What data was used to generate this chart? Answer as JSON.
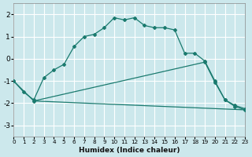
{
  "xlabel": "Humidex (Indice chaleur)",
  "bg_color": "#cce8ec",
  "grid_color": "#b8d8dc",
  "line_color": "#1a7a6e",
  "xlim": [
    0,
    23
  ],
  "ylim": [
    -3.5,
    2.5
  ],
  "yticks": [
    -3,
    -2,
    -1,
    0,
    1,
    2
  ],
  "xticks": [
    0,
    1,
    2,
    3,
    4,
    5,
    6,
    7,
    8,
    9,
    10,
    11,
    12,
    13,
    14,
    15,
    16,
    17,
    18,
    19,
    20,
    21,
    22,
    23
  ],
  "curve1_x": [
    0,
    1,
    2,
    3,
    4,
    5,
    6,
    7,
    8,
    9,
    10,
    11,
    12,
    13,
    14,
    15,
    16,
    17,
    18,
    19,
    20,
    21,
    22,
    23
  ],
  "curve1_y": [
    -1.0,
    -1.5,
    -1.85,
    -0.85,
    -0.5,
    -0.25,
    0.55,
    1.0,
    1.1,
    1.4,
    1.85,
    1.75,
    1.85,
    1.5,
    1.4,
    1.4,
    1.3,
    0.25,
    0.25,
    -0.1,
    -1.0,
    -1.85,
    -2.1,
    -2.25
  ],
  "curve2_x": [
    0,
    2,
    19,
    20,
    21,
    22,
    23
  ],
  "curve2_y": [
    -1.0,
    -1.9,
    -0.15,
    -1.05,
    -1.85,
    -2.15,
    -2.3
  ],
  "curve3_x": [
    2,
    23
  ],
  "curve3_y": [
    -1.9,
    -2.3
  ]
}
